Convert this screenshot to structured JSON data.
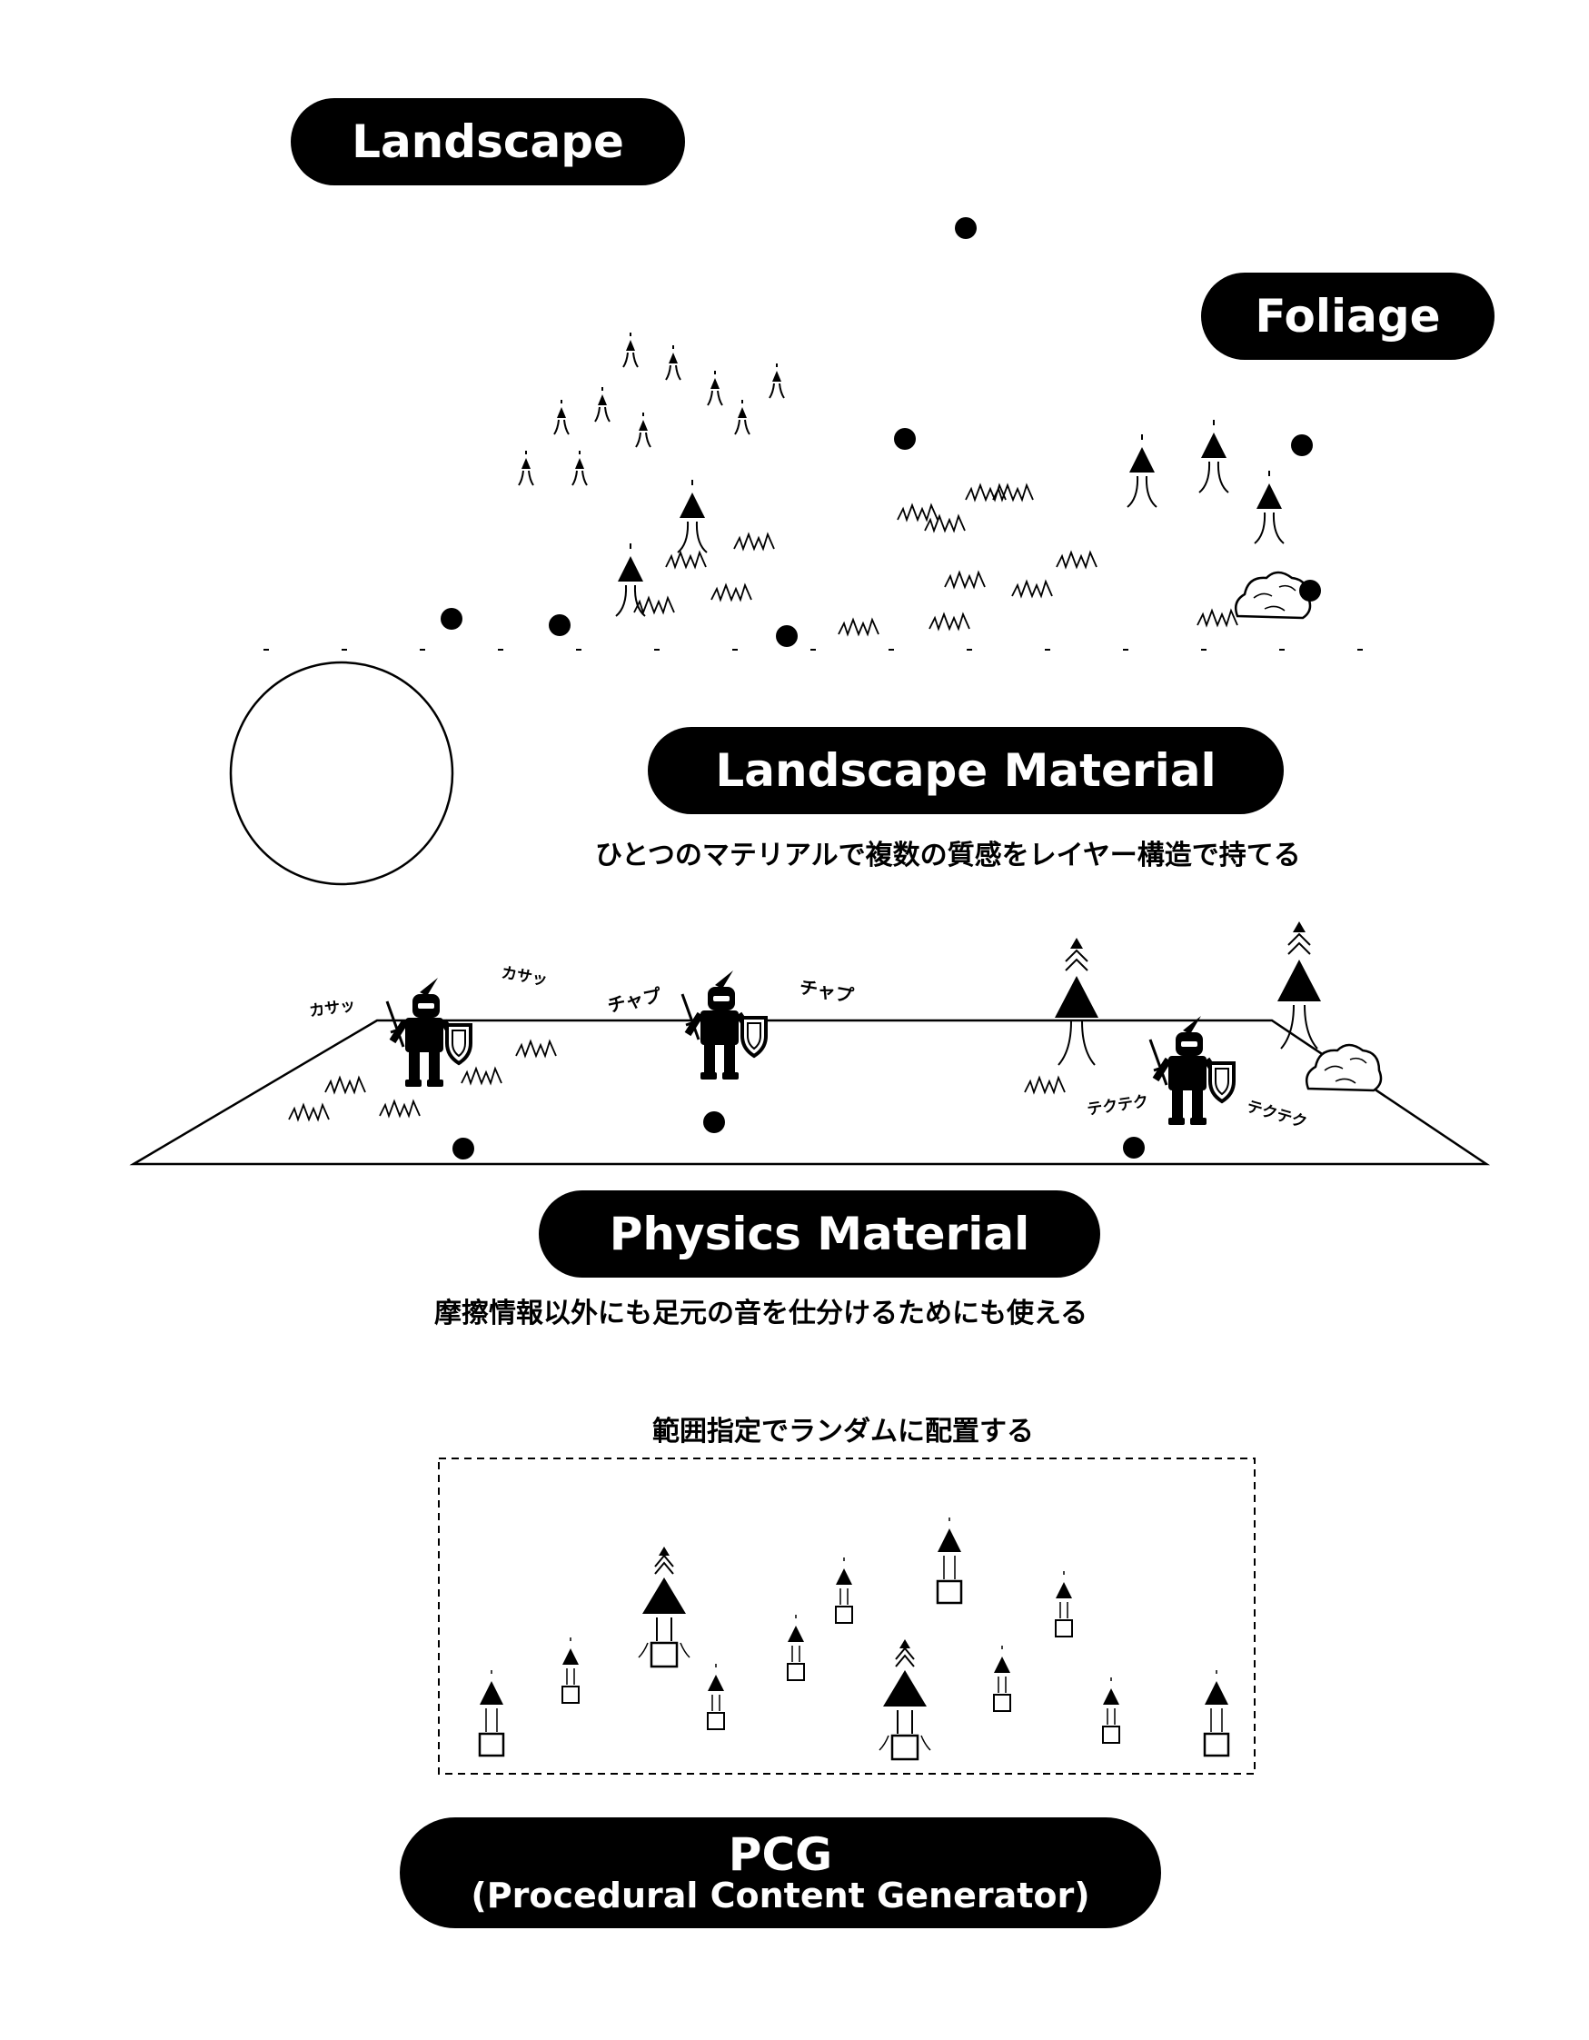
{
  "landscape": {
    "title": "Landscape"
  },
  "foliage": {
    "title": "Foliage"
  },
  "landscape_material": {
    "title": "Landscape Material",
    "caption": "ひとつのマテリアルで複数の質感をレイヤー構造で持てる"
  },
  "physics_material": {
    "title": "Physics Material",
    "caption": "摩擦情報以外にも足元の音を仕分けるためにも使える",
    "sounds": [
      "カサッ",
      "カサッ",
      "チャプ",
      "チャプ",
      "テクテク",
      "テクテク"
    ]
  },
  "pcg": {
    "caption": "範囲指定でランダムに配置する",
    "title": "PCG",
    "subtitle": "(Procedural Content Generator)"
  },
  "colors": {
    "ink": "#000000",
    "paper": "#ffffff"
  }
}
